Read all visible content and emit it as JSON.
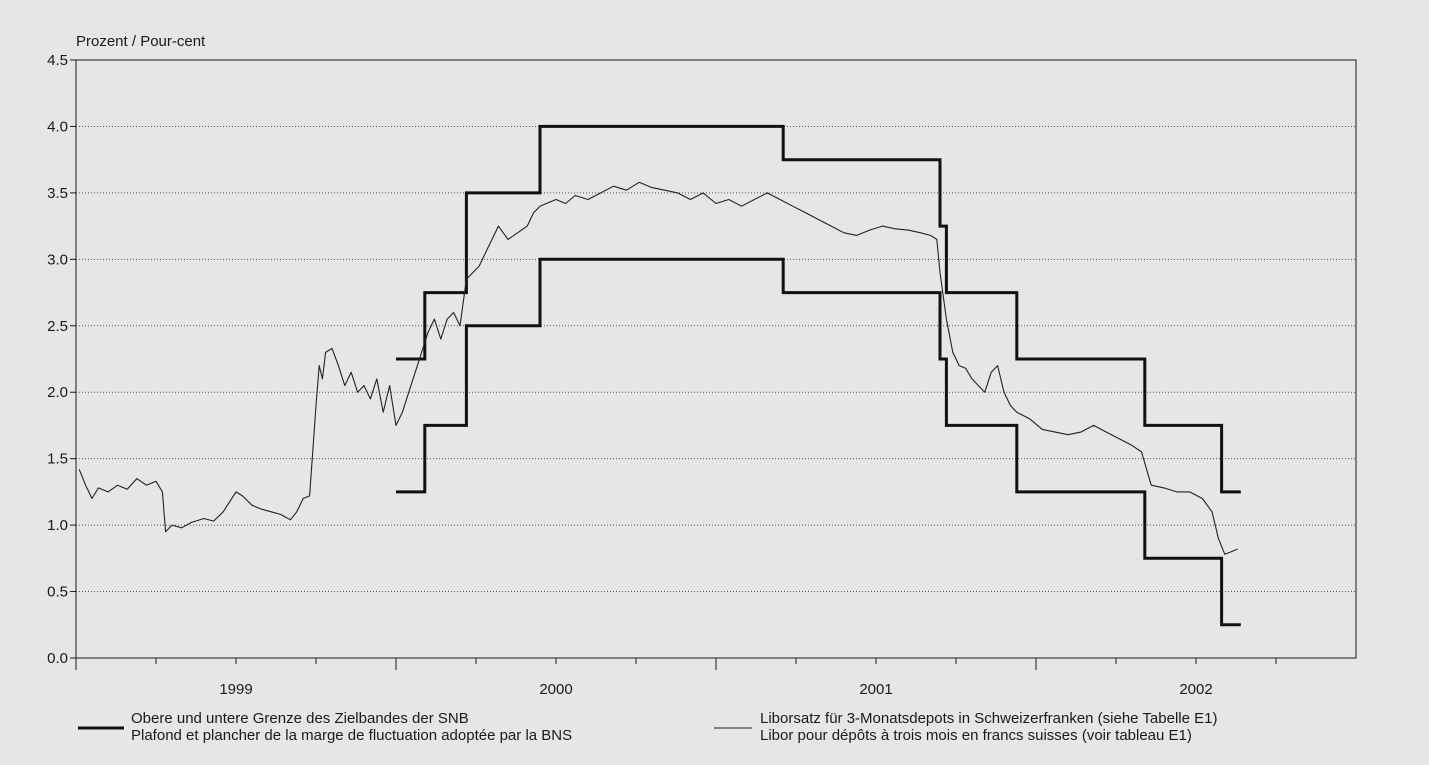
{
  "chart_data": {
    "type": "line",
    "ylabel": "Prozent / Pour-cent",
    "ylim": [
      0,
      4.5
    ],
    "yticks": [
      "0.0",
      "0.5",
      "1.0",
      "1.5",
      "2.0",
      "2.5",
      "3.0",
      "3.5",
      "4.0",
      "4.5"
    ],
    "xlim": [
      1998.5,
      2002.5
    ],
    "xticks": [
      "1999",
      "2000",
      "2001",
      "2002"
    ],
    "grid": "horizontal-dotted",
    "legend_position": "bottom",
    "series": [
      {
        "name": "Obere und untere Grenze des Zielbandes der SNB / Plafond et plancher de la marge de fluctuation adoptée par la BNS",
        "style": "thick",
        "color": "#111111",
        "lines": [
          {
            "role": "upper",
            "x": [
              1999.5,
              1999.59,
              1999.59,
              1999.72,
              1999.72,
              1999.95,
              1999.95,
              2000.71,
              2000.71,
              2001.2,
              2001.2,
              2001.22,
              2001.22,
              2001.44,
              2001.44,
              2001.84,
              2001.84,
              2002.08,
              2002.08,
              2002.14
            ],
            "y": [
              2.25,
              2.25,
              2.75,
              2.75,
              3.5,
              3.5,
              4.0,
              4.0,
              3.75,
              3.75,
              3.25,
              3.25,
              2.75,
              2.75,
              2.25,
              2.25,
              1.75,
              1.75,
              1.25,
              1.25
            ]
          },
          {
            "role": "lower",
            "x": [
              1999.5,
              1999.59,
              1999.59,
              1999.72,
              1999.72,
              1999.95,
              1999.95,
              2000.71,
              2000.71,
              2001.2,
              2001.2,
              2001.22,
              2001.22,
              2001.44,
              2001.44,
              2001.84,
              2001.84,
              2002.08,
              2002.08,
              2002.14
            ],
            "y": [
              1.25,
              1.25,
              1.75,
              1.75,
              2.5,
              2.5,
              3.0,
              3.0,
              2.75,
              2.75,
              2.25,
              2.25,
              1.75,
              1.75,
              1.25,
              1.25,
              0.75,
              0.75,
              0.25,
              0.25
            ]
          }
        ]
      },
      {
        "name": "Liborsatz für 3-Monatsdepots in Schweizerfranken (siehe Tabelle E1) / Libor pour dépôts à trois mois en francs suisses (voir tableau E1)",
        "style": "thin",
        "color": "#222222",
        "x": [
          1998.51,
          1998.53,
          1998.55,
          1998.57,
          1998.6,
          1998.63,
          1998.66,
          1998.69,
          1998.72,
          1998.75,
          1998.77,
          1998.78,
          1998.8,
          1998.83,
          1998.86,
          1998.9,
          1998.93,
          1998.96,
          1999.0,
          1999.02,
          1999.05,
          1999.08,
          1999.11,
          1999.14,
          1999.17,
          1999.19,
          1999.21,
          1999.23,
          1999.25,
          1999.26,
          1999.27,
          1999.28,
          1999.3,
          1999.32,
          1999.34,
          1999.36,
          1999.38,
          1999.4,
          1999.42,
          1999.44,
          1999.46,
          1999.48,
          1999.5,
          1999.52,
          1999.54,
          1999.56,
          1999.58,
          1999.6,
          1999.62,
          1999.64,
          1999.66,
          1999.68,
          1999.7,
          1999.72,
          1999.74,
          1999.76,
          1999.79,
          1999.82,
          1999.85,
          1999.88,
          1999.91,
          1999.93,
          1999.95,
          1999.97,
          2000.0,
          2000.03,
          2000.06,
          2000.1,
          2000.14,
          2000.18,
          2000.22,
          2000.26,
          2000.3,
          2000.34,
          2000.38,
          2000.42,
          2000.46,
          2000.5,
          2000.54,
          2000.58,
          2000.62,
          2000.66,
          2000.7,
          2000.74,
          2000.78,
          2000.82,
          2000.86,
          2000.9,
          2000.94,
          2000.98,
          2001.02,
          2001.06,
          2001.1,
          2001.14,
          2001.17,
          2001.19,
          2001.2,
          2001.22,
          2001.24,
          2001.26,
          2001.28,
          2001.3,
          2001.32,
          2001.34,
          2001.36,
          2001.38,
          2001.4,
          2001.42,
          2001.44,
          2001.48,
          2001.52,
          2001.56,
          2001.6,
          2001.64,
          2001.68,
          2001.72,
          2001.76,
          2001.8,
          2001.83,
          2001.86,
          2001.9,
          2001.94,
          2001.98,
          2002.02,
          2002.05,
          2002.07,
          2002.09,
          2002.11,
          2002.13
        ],
        "y": [
          1.42,
          1.3,
          1.2,
          1.28,
          1.25,
          1.3,
          1.27,
          1.35,
          1.3,
          1.33,
          1.25,
          0.95,
          1.0,
          0.98,
          1.02,
          1.05,
          1.03,
          1.1,
          1.25,
          1.22,
          1.15,
          1.12,
          1.1,
          1.08,
          1.04,
          1.1,
          1.2,
          1.22,
          1.9,
          2.2,
          2.1,
          2.3,
          2.33,
          2.2,
          2.05,
          2.15,
          2.0,
          2.05,
          1.95,
          2.1,
          1.85,
          2.05,
          1.75,
          1.85,
          2.0,
          2.15,
          2.3,
          2.45,
          2.55,
          2.4,
          2.55,
          2.6,
          2.5,
          2.85,
          2.9,
          2.95,
          3.1,
          3.25,
          3.15,
          3.2,
          3.25,
          3.35,
          3.4,
          3.42,
          3.45,
          3.42,
          3.48,
          3.45,
          3.5,
          3.55,
          3.52,
          3.58,
          3.54,
          3.52,
          3.5,
          3.45,
          3.5,
          3.42,
          3.45,
          3.4,
          3.45,
          3.5,
          3.45,
          3.4,
          3.35,
          3.3,
          3.25,
          3.2,
          3.18,
          3.22,
          3.25,
          3.23,
          3.22,
          3.2,
          3.18,
          3.15,
          2.9,
          2.55,
          2.3,
          2.2,
          2.18,
          2.1,
          2.05,
          2.0,
          2.15,
          2.2,
          2.0,
          1.9,
          1.85,
          1.8,
          1.72,
          1.7,
          1.68,
          1.7,
          1.75,
          1.7,
          1.65,
          1.6,
          1.55,
          1.3,
          1.28,
          1.25,
          1.25,
          1.2,
          1.1,
          0.9,
          0.78,
          0.8,
          0.82
        ]
      }
    ]
  },
  "legend": {
    "box_line1": "Obere und untere Grenze des Zielbandes der SNB",
    "box_line2": "Plafond et plancher de la marge de fluctuation adoptée par la BNS",
    "libor_line1": "Liborsatz für 3-Monatsdepots in Schweizerfranken (siehe Tabelle E1)",
    "libor_line2": "Libor pour dépôts à trois mois en francs suisses (voir tableau E1)"
  }
}
